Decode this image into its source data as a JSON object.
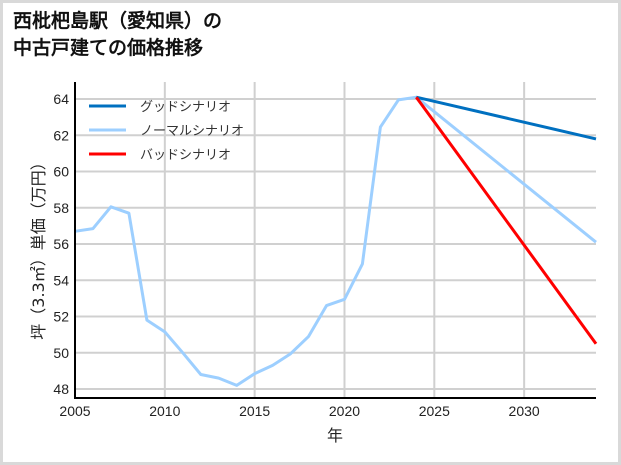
{
  "title": "西枇杷島駅（愛知県）の\n中古戸建ての価格推移",
  "chart_data": {
    "type": "line",
    "title": "西枇杷島駅（愛知県）の中古戸建ての価格推移",
    "xlabel": "年",
    "ylabel": "坪（3.3㎡）単価（万円）",
    "xlim": [
      2005,
      2034
    ],
    "ylim": [
      47.5,
      65
    ],
    "xticks": [
      2005,
      2010,
      2015,
      2020,
      2025,
      2030
    ],
    "yticks": [
      48,
      50,
      52,
      54,
      56,
      58,
      60,
      62,
      64
    ],
    "grid": true,
    "legend_position": "upper left",
    "series": [
      {
        "name": "グッドシナリオ",
        "color": "#0070c0",
        "x": [
          2024,
          2034
        ],
        "values": [
          64.1,
          61.8
        ]
      },
      {
        "name": "ノーマルシナリオ",
        "color": "#9dcfff",
        "x": [
          2005,
          2006,
          2007,
          2008,
          2009,
          2010,
          2011,
          2012,
          2013,
          2014,
          2015,
          2016,
          2017,
          2018,
          2019,
          2020,
          2021,
          2022,
          2023,
          2024,
          2034
        ],
        "values": [
          56.7,
          56.85,
          58.05,
          57.7,
          51.8,
          51.15,
          50.0,
          48.8,
          48.6,
          48.2,
          48.85,
          49.3,
          49.95,
          50.9,
          52.6,
          52.95,
          54.9,
          62.45,
          63.95,
          64.1,
          56.1
        ]
      },
      {
        "name": "バッドシナリオ",
        "color": "#ff0000",
        "x": [
          2024,
          2034
        ],
        "values": [
          64.1,
          50.5
        ]
      }
    ]
  },
  "legend": {
    "items": [
      {
        "label": "グッドシナリオ",
        "color": "#0070c0"
      },
      {
        "label": "ノーマルシナリオ",
        "color": "#9dcfff"
      },
      {
        "label": "バッドシナリオ",
        "color": "#ff0000"
      }
    ]
  }
}
